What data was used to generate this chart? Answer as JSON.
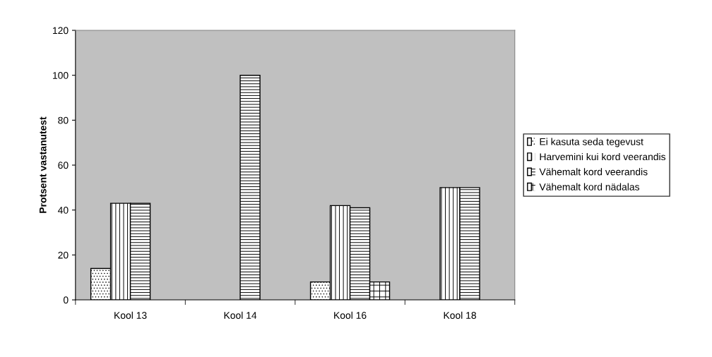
{
  "chart_data": {
    "type": "bar",
    "ylabel": "Protsent vastanutest",
    "categories": [
      "Kool 13",
      "Kool 14",
      "Kool 16",
      "Kool 18"
    ],
    "series": [
      {
        "name": "Ei kasuta seda tegevust",
        "color": "#ffffff",
        "values": [
          14,
          null,
          8,
          null
        ]
      },
      {
        "name": "Harvemini kui kord veerandis",
        "color": "#ffffff",
        "values": [
          43,
          null,
          42,
          50
        ]
      },
      {
        "name": "Vähemalt kord veerandis",
        "color": "#ffffff",
        "values": [
          43,
          100,
          41,
          50
        ]
      },
      {
        "name": "Vähemalt kord nädalas",
        "color": "#ffffff",
        "values": [
          null,
          null,
          8,
          null
        ]
      }
    ],
    "ylim": [
      0,
      120
    ],
    "yticks": [
      0,
      20,
      40,
      60,
      80,
      100,
      120
    ],
    "grid": false,
    "legend": "right"
  }
}
